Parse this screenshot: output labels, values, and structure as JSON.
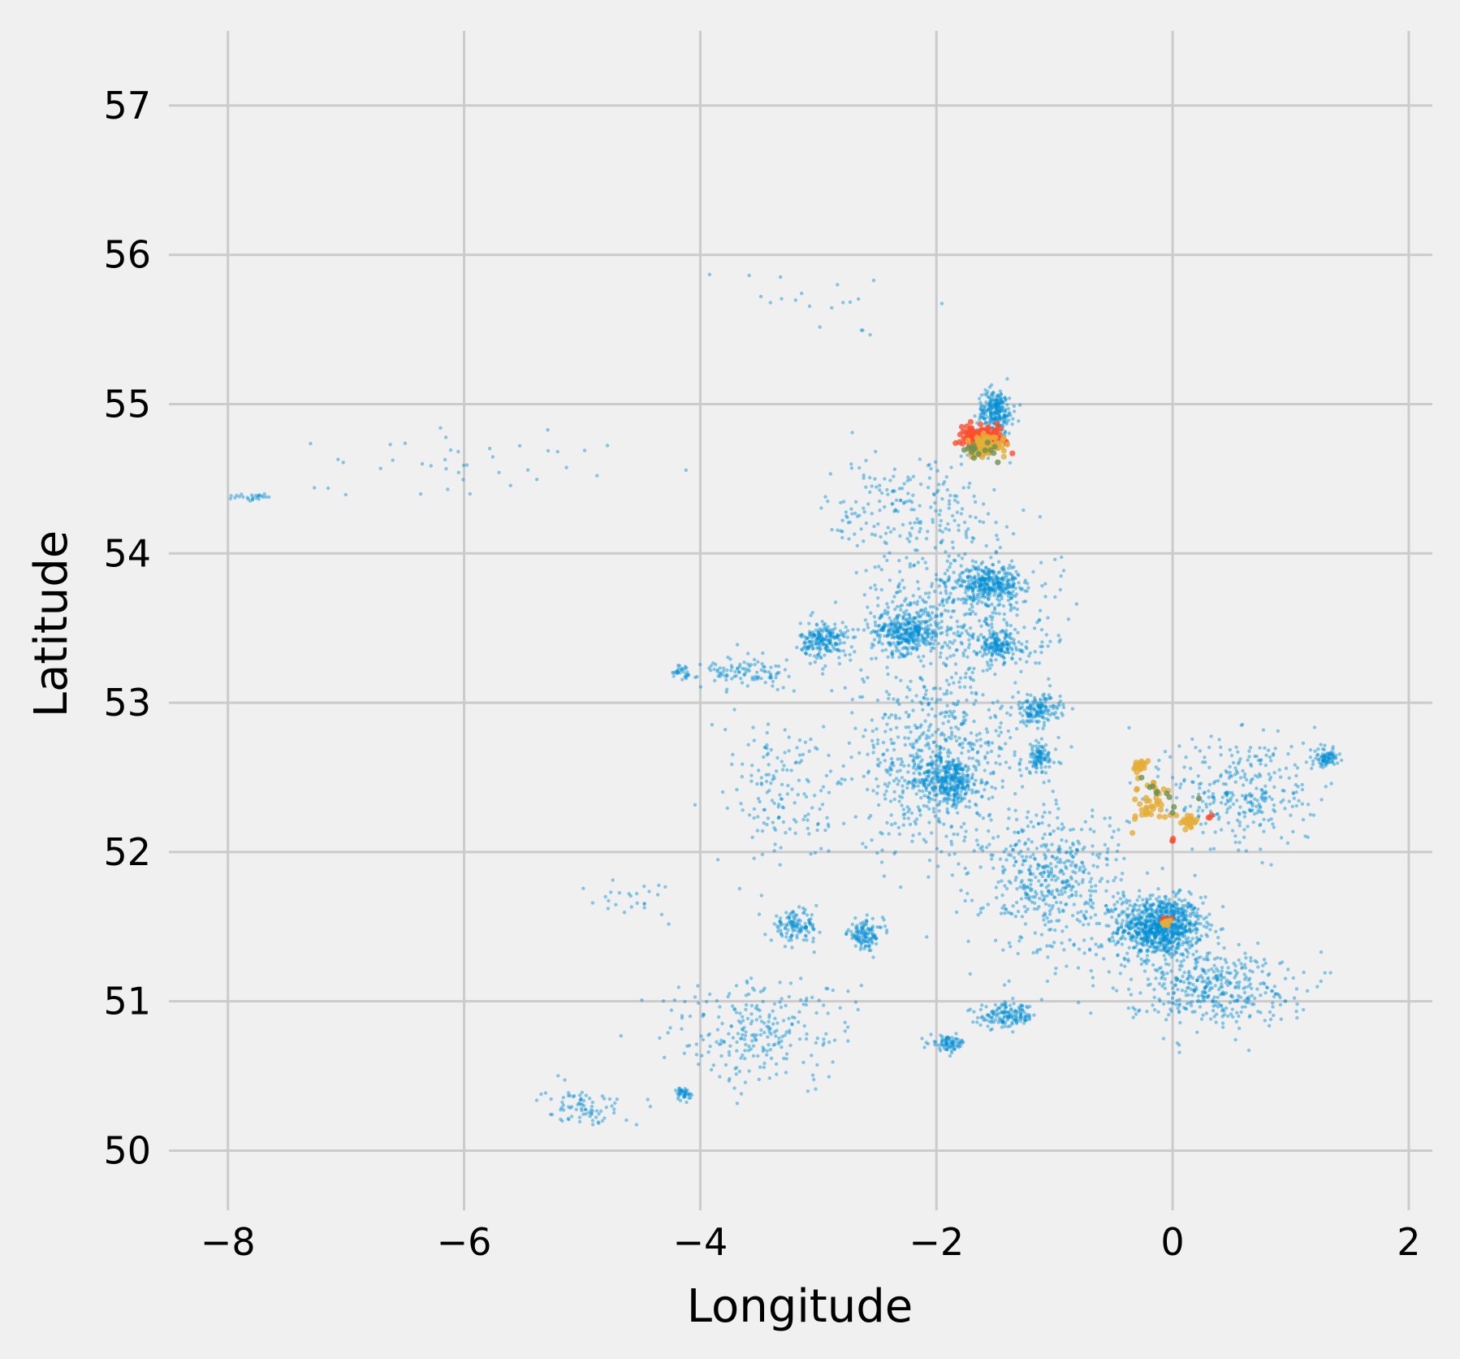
{
  "chart_data": {
    "type": "scatter",
    "title": "",
    "xlabel": "Longitude",
    "ylabel": "Latitude",
    "xlim": [
      -8.5,
      2.2
    ],
    "ylim": [
      49.6,
      57.5
    ],
    "grid": true,
    "x_ticks": [
      -8,
      -6,
      -4,
      -2,
      0,
      2
    ],
    "x_tick_labels": [
      "−8",
      "−6",
      "−4",
      "−2",
      "0",
      "2"
    ],
    "y_ticks": [
      50,
      51,
      52,
      53,
      54,
      55,
      56,
      57
    ],
    "y_tick_labels": [
      "50",
      "51",
      "52",
      "53",
      "54",
      "55",
      "56",
      "57"
    ],
    "colors": {
      "background": "#f0f0f0",
      "grid": "#cbcbcb",
      "blue": "#008fd5",
      "red": "#fc4f30",
      "orange": "#e5ae38",
      "green": "#6d904f"
    },
    "series": [
      {
        "color": "#008fd5",
        "clusters": [
          {
            "lon": -0.1,
            "lat": 51.5,
            "spread_lon": 0.35,
            "spread_lat": 0.2,
            "n": 900
          },
          {
            "lon": -1.9,
            "lat": 52.48,
            "spread_lon": 0.25,
            "spread_lat": 0.15,
            "n": 300
          },
          {
            "lon": -2.25,
            "lat": 53.48,
            "spread_lon": 0.3,
            "spread_lat": 0.15,
            "n": 350
          },
          {
            "lon": -1.55,
            "lat": 53.8,
            "spread_lon": 0.25,
            "spread_lat": 0.12,
            "n": 300
          },
          {
            "lon": -2.95,
            "lat": 53.42,
            "spread_lon": 0.2,
            "spread_lat": 0.12,
            "n": 200
          },
          {
            "lon": -1.5,
            "lat": 54.95,
            "spread_lon": 0.15,
            "spread_lat": 0.15,
            "n": 250
          },
          {
            "lon": -1.47,
            "lat": 53.38,
            "spread_lon": 0.2,
            "spread_lat": 0.1,
            "n": 150
          },
          {
            "lon": -1.15,
            "lat": 52.95,
            "spread_lon": 0.2,
            "spread_lat": 0.1,
            "n": 150
          },
          {
            "lon": -1.13,
            "lat": 52.63,
            "spread_lon": 0.15,
            "spread_lat": 0.1,
            "n": 100
          },
          {
            "lon": -2.6,
            "lat": 51.45,
            "spread_lon": 0.15,
            "spread_lat": 0.1,
            "n": 120
          },
          {
            "lon": -3.2,
            "lat": 51.5,
            "spread_lon": 0.2,
            "spread_lat": 0.1,
            "n": 120
          },
          {
            "lon": -1.4,
            "lat": 50.9,
            "spread_lon": 0.25,
            "spread_lat": 0.08,
            "n": 150
          },
          {
            "lon": -1.9,
            "lat": 50.72,
            "spread_lon": 0.15,
            "spread_lat": 0.05,
            "n": 80
          },
          {
            "lon": 1.3,
            "lat": 52.63,
            "spread_lon": 0.1,
            "spread_lat": 0.06,
            "n": 80
          },
          {
            "lon": -4.14,
            "lat": 50.38,
            "spread_lon": 0.06,
            "spread_lat": 0.04,
            "n": 40
          },
          {
            "lon": -1.0,
            "lat": 51.8,
            "spread_lon": 0.6,
            "spread_lat": 0.5,
            "n": 500
          },
          {
            "lon": -2.0,
            "lat": 52.6,
            "spread_lon": 0.7,
            "spread_lat": 0.6,
            "n": 600
          },
          {
            "lon": -1.8,
            "lat": 53.6,
            "spread_lon": 0.8,
            "spread_lat": 0.5,
            "n": 450
          },
          {
            "lon": 0.6,
            "lat": 52.4,
            "spread_lon": 0.6,
            "spread_lat": 0.4,
            "n": 300
          },
          {
            "lon": 0.3,
            "lat": 51.1,
            "spread_lon": 0.7,
            "spread_lat": 0.25,
            "n": 400
          },
          {
            "lon": -3.5,
            "lat": 50.8,
            "spread_lon": 0.8,
            "spread_lat": 0.35,
            "n": 250
          },
          {
            "lon": -2.2,
            "lat": 54.3,
            "spread_lon": 0.7,
            "spread_lat": 0.4,
            "n": 200
          },
          {
            "lon": -3.3,
            "lat": 52.4,
            "spread_lon": 0.5,
            "spread_lat": 0.5,
            "n": 150
          },
          {
            "lon": -3.6,
            "lat": 53.2,
            "spread_lon": 0.4,
            "spread_lat": 0.1,
            "n": 100
          },
          {
            "lon": -4.15,
            "lat": 53.2,
            "spread_lon": 0.1,
            "spread_lat": 0.06,
            "n": 30
          },
          {
            "lon": -5.0,
            "lat": 50.3,
            "spread_lon": 0.35,
            "spread_lat": 0.12,
            "n": 80
          },
          {
            "lon": -6.0,
            "lat": 54.6,
            "spread_lon": 1.2,
            "spread_lat": 0.25,
            "n": 40
          },
          {
            "lon": -7.8,
            "lat": 54.38,
            "spread_lon": 0.2,
            "spread_lat": 0.02,
            "n": 25
          },
          {
            "lon": -3.0,
            "lat": 55.7,
            "spread_lon": 0.8,
            "spread_lat": 0.3,
            "n": 20
          },
          {
            "lon": -4.6,
            "lat": 51.7,
            "spread_lon": 0.4,
            "spread_lat": 0.15,
            "n": 25
          }
        ]
      },
      {
        "color": "#fc4f30",
        "clusters": [
          {
            "lon": -1.6,
            "lat": 54.77,
            "spread_lon": 0.18,
            "spread_lat": 0.07,
            "n": 160
          },
          {
            "lon": -0.05,
            "lat": 51.53,
            "spread_lon": 0.05,
            "spread_lat": 0.02,
            "n": 12
          },
          {
            "lon": 0.0,
            "lat": 52.08,
            "spread_lon": 0.02,
            "spread_lat": 0.02,
            "n": 3
          },
          {
            "lon": 0.32,
            "lat": 52.24,
            "spread_lon": 0.02,
            "spread_lat": 0.02,
            "n": 3
          }
        ]
      },
      {
        "color": "#e5ae38",
        "clusters": [
          {
            "lon": -1.58,
            "lat": 54.72,
            "spread_lon": 0.15,
            "spread_lat": 0.08,
            "n": 90
          },
          {
            "lon": -0.28,
            "lat": 52.58,
            "spread_lon": 0.05,
            "spread_lat": 0.03,
            "n": 25
          },
          {
            "lon": 0.13,
            "lat": 52.2,
            "spread_lon": 0.06,
            "spread_lat": 0.04,
            "n": 25
          },
          {
            "lon": -0.15,
            "lat": 52.32,
            "spread_lon": 0.2,
            "spread_lat": 0.15,
            "n": 40
          },
          {
            "lon": -0.07,
            "lat": 51.52,
            "spread_lon": 0.05,
            "spread_lat": 0.02,
            "n": 15
          }
        ]
      },
      {
        "color": "#6d904f",
        "clusters": [
          {
            "lon": -1.6,
            "lat": 54.7,
            "spread_lon": 0.15,
            "spread_lat": 0.08,
            "n": 15
          },
          {
            "lon": -0.1,
            "lat": 52.35,
            "spread_lon": 0.2,
            "spread_lat": 0.15,
            "n": 10
          }
        ]
      }
    ]
  }
}
